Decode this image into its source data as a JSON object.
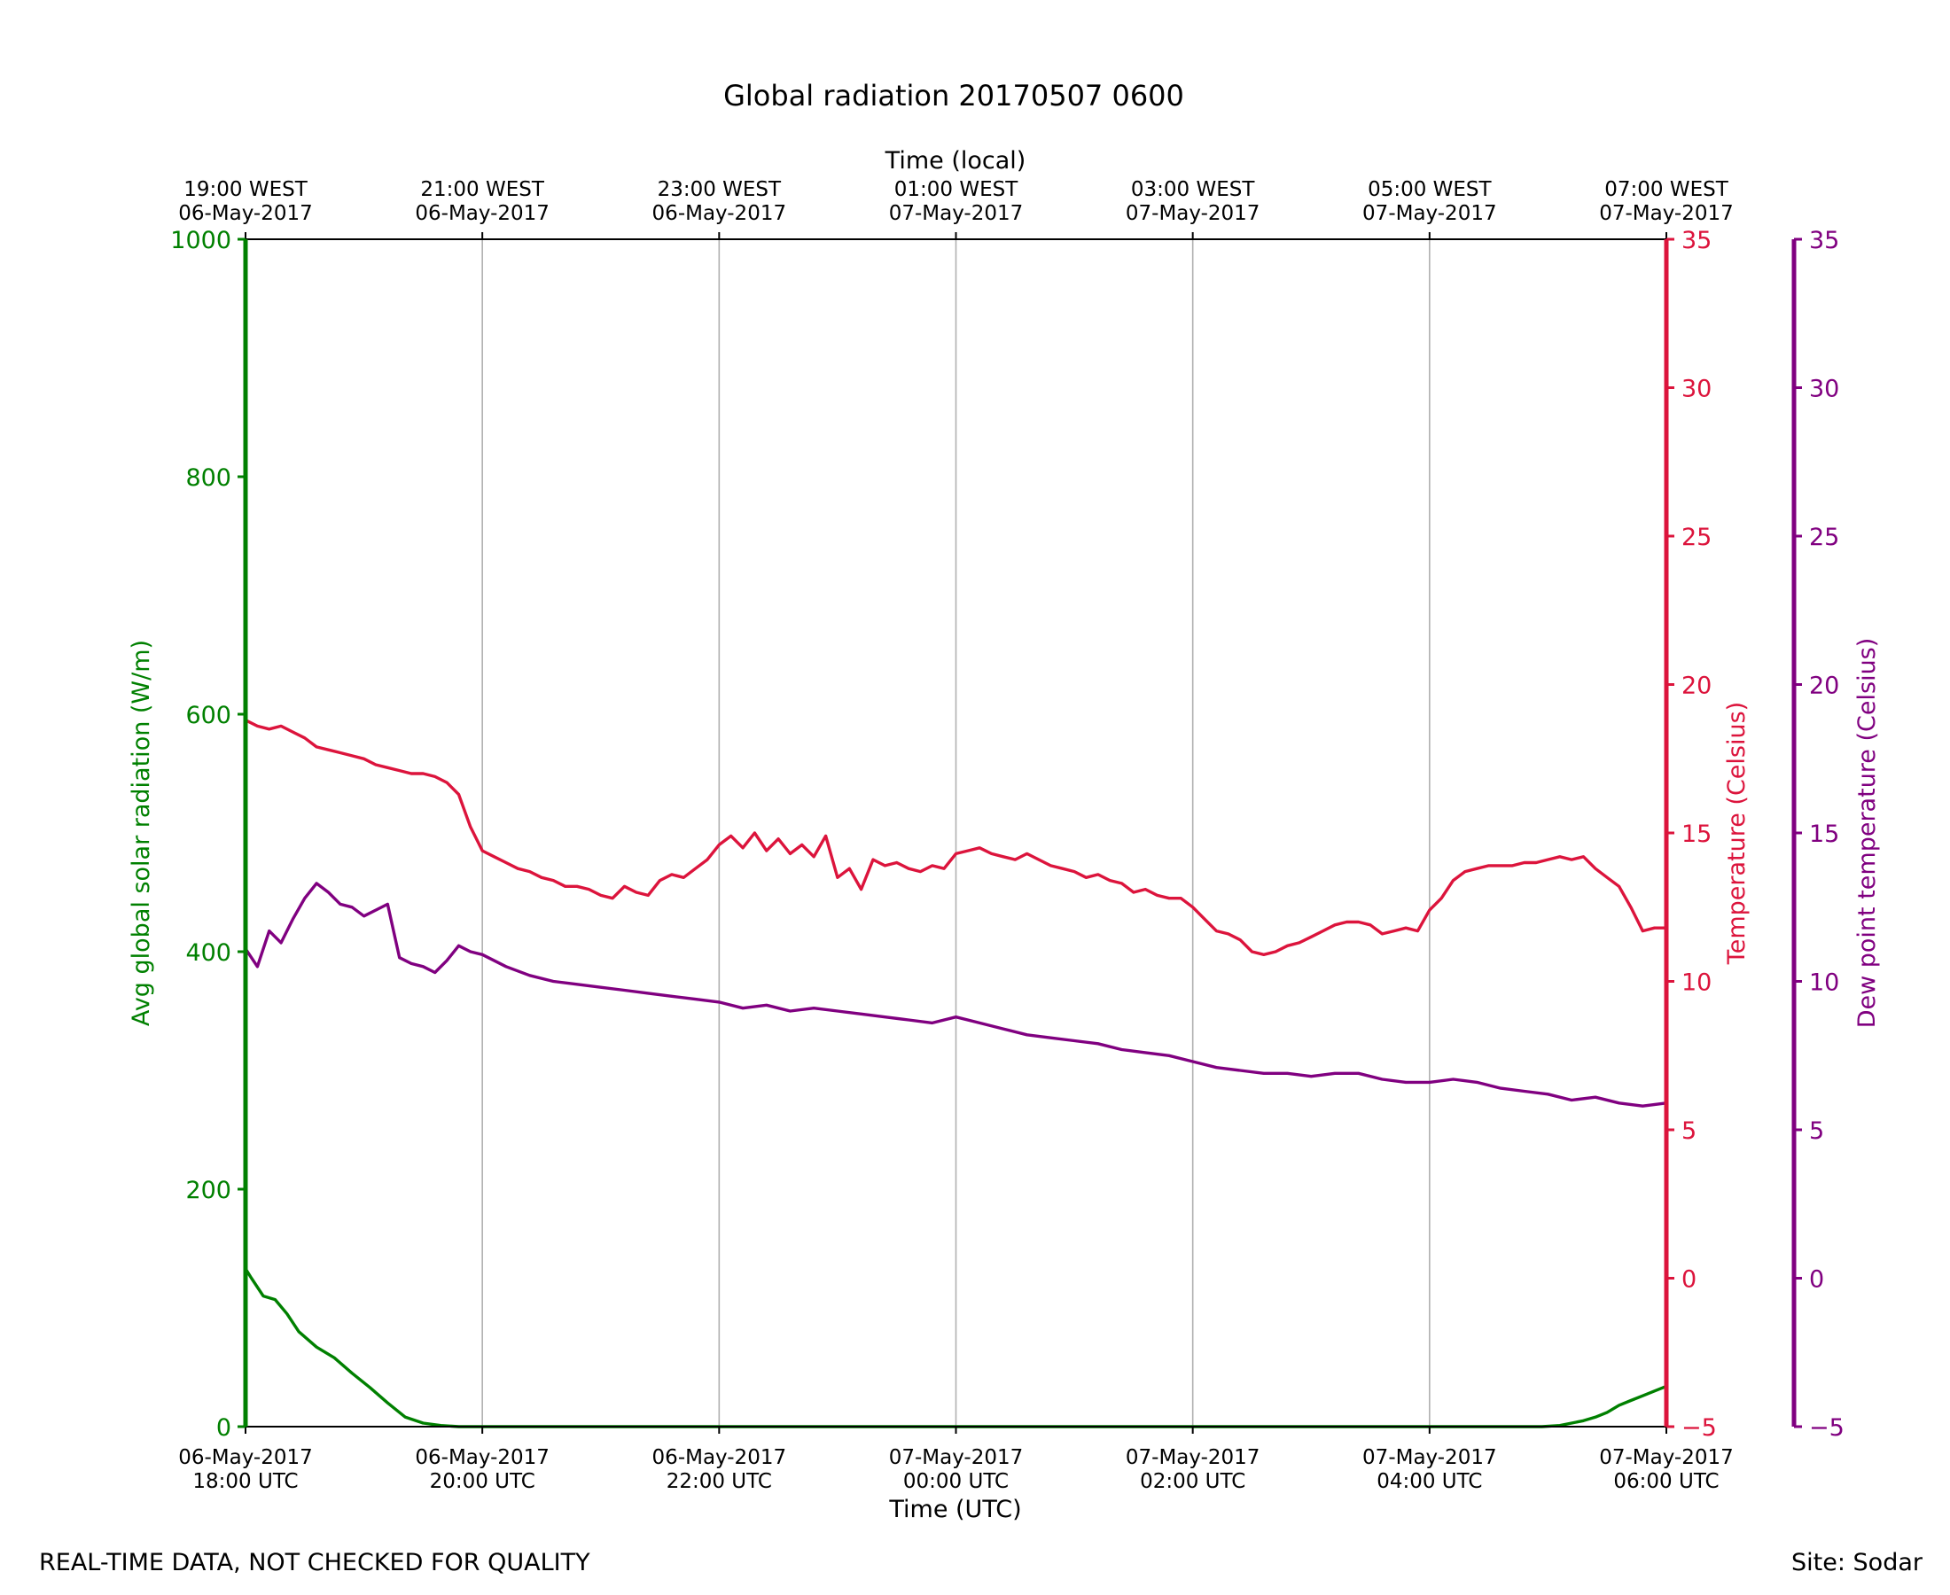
{
  "chart_data": {
    "type": "line",
    "title": "Global radiation 20170507 0600",
    "xlabel": "Time (UTC)",
    "xlabel_top": "Time (local)",
    "x_range_hours_utc": [
      0,
      12
    ],
    "x_ticks_bottom": [
      {
        "hour": 0,
        "line1": "06-May-2017",
        "line2": "18:00 UTC"
      },
      {
        "hour": 2,
        "line1": "06-May-2017",
        "line2": "20:00 UTC"
      },
      {
        "hour": 4,
        "line1": "06-May-2017",
        "line2": "22:00 UTC"
      },
      {
        "hour": 6,
        "line1": "07-May-2017",
        "line2": "00:00 UTC"
      },
      {
        "hour": 8,
        "line1": "07-May-2017",
        "line2": "02:00 UTC"
      },
      {
        "hour": 10,
        "line1": "07-May-2017",
        "line2": "04:00 UTC"
      },
      {
        "hour": 12,
        "line1": "07-May-2017",
        "line2": "06:00 UTC"
      }
    ],
    "x_ticks_top": [
      {
        "hour": 0,
        "line1": "19:00 WEST",
        "line2": "06-May-2017"
      },
      {
        "hour": 2,
        "line1": "21:00 WEST",
        "line2": "06-May-2017"
      },
      {
        "hour": 4,
        "line1": "23:00 WEST",
        "line2": "06-May-2017"
      },
      {
        "hour": 6,
        "line1": "01:00 WEST",
        "line2": "07-May-2017"
      },
      {
        "hour": 8,
        "line1": "03:00 WEST",
        "line2": "07-May-2017"
      },
      {
        "hour": 10,
        "line1": "05:00 WEST",
        "line2": "07-May-2017"
      },
      {
        "hour": 12,
        "line1": "07:00 WEST",
        "line2": "07-May-2017"
      }
    ],
    "grid": "vertical",
    "axes": {
      "radiation": {
        "label": "Avg global solar radiation (W/m)",
        "side": "left",
        "range": [
          0,
          1000
        ],
        "ticks": [
          "0",
          "200",
          "400",
          "600",
          "800",
          "1000"
        ],
        "color": "#008000"
      },
      "temperature": {
        "label": "Temperature (Celsius)",
        "side": "right",
        "range": [
          -5,
          35
        ],
        "ticks": [
          "−5",
          "0",
          "5",
          "10",
          "15",
          "20",
          "25",
          "30",
          "35"
        ],
        "color": "#dc143c"
      },
      "dewpoint": {
        "label": "Dew point temperature (Celsius)",
        "side": "right-outer",
        "range": [
          -5,
          35
        ],
        "ticks": [
          "−5",
          "0",
          "5",
          "10",
          "15",
          "20",
          "25",
          "30",
          "35"
        ],
        "color": "#800080"
      }
    },
    "series": [
      {
        "name": "Avg global solar radiation",
        "axis": "radiation",
        "color": "#008000",
        "x": [
          0,
          0.05,
          0.15,
          0.25,
          0.35,
          0.45,
          0.6,
          0.75,
          0.9,
          1.05,
          1.2,
          1.35,
          1.5,
          1.65,
          1.8,
          2.0,
          2.2,
          10.95,
          11.1,
          11.2,
          11.3,
          11.4,
          11.5,
          11.6,
          11.7,
          11.8,
          11.9,
          12.0
        ],
        "values": [
          133,
          125,
          110,
          107,
          95,
          80,
          67,
          58,
          45,
          33,
          20,
          8,
          3,
          1,
          0,
          0,
          0,
          0,
          1,
          3,
          5,
          8,
          12,
          18,
          22,
          26,
          30,
          34
        ]
      },
      {
        "name": "Temperature",
        "axis": "temperature",
        "color": "#dc143c",
        "x": [
          0,
          0.1,
          0.2,
          0.3,
          0.4,
          0.5,
          0.6,
          0.7,
          0.8,
          0.9,
          1.0,
          1.1,
          1.2,
          1.3,
          1.4,
          1.5,
          1.6,
          1.7,
          1.8,
          1.9,
          2.0,
          2.1,
          2.2,
          2.3,
          2.4,
          2.5,
          2.6,
          2.7,
          2.8,
          2.9,
          3.0,
          3.1,
          3.2,
          3.3,
          3.4,
          3.5,
          3.6,
          3.7,
          3.8,
          3.9,
          4.0,
          4.1,
          4.2,
          4.3,
          4.4,
          4.5,
          4.6,
          4.7,
          4.8,
          4.9,
          5.0,
          5.1,
          5.2,
          5.3,
          5.4,
          5.5,
          5.6,
          5.7,
          5.8,
          5.9,
          6.0,
          6.1,
          6.2,
          6.3,
          6.4,
          6.5,
          6.6,
          6.7,
          6.8,
          6.9,
          7.0,
          7.1,
          7.2,
          7.3,
          7.4,
          7.5,
          7.6,
          7.7,
          7.8,
          7.9,
          8.0,
          8.1,
          8.2,
          8.3,
          8.4,
          8.5,
          8.6,
          8.7,
          8.8,
          8.9,
          9.0,
          9.1,
          9.2,
          9.3,
          9.4,
          9.5,
          9.6,
          9.7,
          9.8,
          9.9,
          10.0,
          10.1,
          10.2,
          10.3,
          10.4,
          10.5,
          10.6,
          10.7,
          10.8,
          10.9,
          11.0,
          11.1,
          11.2,
          11.3,
          11.4,
          11.5,
          11.6,
          11.7,
          11.8,
          11.9,
          12.0
        ],
        "values": [
          18.8,
          18.6,
          18.5,
          18.6,
          18.4,
          18.2,
          17.9,
          17.8,
          17.7,
          17.6,
          17.5,
          17.3,
          17.2,
          17.1,
          17.0,
          17.0,
          16.9,
          16.7,
          16.3,
          15.2,
          14.4,
          14.2,
          14.0,
          13.8,
          13.7,
          13.5,
          13.4,
          13.2,
          13.2,
          13.1,
          12.9,
          12.8,
          13.2,
          13.0,
          12.9,
          13.4,
          13.6,
          13.5,
          13.8,
          14.1,
          14.6,
          14.9,
          14.5,
          15.0,
          14.4,
          14.8,
          14.3,
          14.6,
          14.2,
          14.9,
          13.5,
          13.8,
          13.1,
          14.1,
          13.9,
          14.0,
          13.8,
          13.7,
          13.9,
          13.8,
          14.3,
          14.4,
          14.5,
          14.3,
          14.2,
          14.1,
          14.3,
          14.1,
          13.9,
          13.8,
          13.7,
          13.5,
          13.6,
          13.4,
          13.3,
          13.0,
          13.1,
          12.9,
          12.8,
          12.8,
          12.5,
          12.1,
          11.7,
          11.6,
          11.4,
          11.0,
          10.9,
          11.0,
          11.2,
          11.3,
          11.5,
          11.7,
          11.9,
          12.0,
          12.0,
          11.9,
          11.6,
          11.7,
          11.8,
          11.7,
          12.4,
          12.8,
          13.4,
          13.7,
          13.8,
          13.9,
          13.9,
          13.9,
          14.0,
          14.0,
          14.1,
          14.2,
          14.1,
          14.2,
          13.8,
          13.5,
          13.2,
          12.5,
          11.7,
          11.8,
          11.8
        ]
      },
      {
        "name": "Dew point temperature",
        "axis": "dewpoint",
        "color": "#800080",
        "x": [
          0,
          0.1,
          0.2,
          0.3,
          0.4,
          0.5,
          0.6,
          0.7,
          0.8,
          0.9,
          1.0,
          1.1,
          1.2,
          1.3,
          1.4,
          1.5,
          1.6,
          1.7,
          1.8,
          1.9,
          2.0,
          2.2,
          2.4,
          2.6,
          2.8,
          3.0,
          3.2,
          3.4,
          3.6,
          3.8,
          4.0,
          4.2,
          4.4,
          4.6,
          4.8,
          5.0,
          5.2,
          5.4,
          5.6,
          5.8,
          6.0,
          6.2,
          6.4,
          6.6,
          6.8,
          7.0,
          7.2,
          7.4,
          7.6,
          7.8,
          8.0,
          8.2,
          8.4,
          8.6,
          8.8,
          9.0,
          9.2,
          9.4,
          9.6,
          9.8,
          10.0,
          10.2,
          10.4,
          10.6,
          10.8,
          11.0,
          11.2,
          11.4,
          11.6,
          11.8,
          12.0
        ],
        "values": [
          11.1,
          10.5,
          11.7,
          11.3,
          12.1,
          12.8,
          13.3,
          13.0,
          12.6,
          12.5,
          12.2,
          12.4,
          12.6,
          10.8,
          10.6,
          10.5,
          10.3,
          10.7,
          11.2,
          11.0,
          10.9,
          10.5,
          10.2,
          10.0,
          9.9,
          9.8,
          9.7,
          9.6,
          9.5,
          9.4,
          9.3,
          9.1,
          9.2,
          9.0,
          9.1,
          9.0,
          8.9,
          8.8,
          8.7,
          8.6,
          8.8,
          8.6,
          8.4,
          8.2,
          8.1,
          8.0,
          7.9,
          7.7,
          7.6,
          7.5,
          7.3,
          7.1,
          7.0,
          6.9,
          6.9,
          6.8,
          6.9,
          6.9,
          6.7,
          6.6,
          6.6,
          6.7,
          6.6,
          6.4,
          6.3,
          6.2,
          6.0,
          6.1,
          5.9,
          5.8,
          5.9
        ]
      }
    ]
  },
  "footer": {
    "left": "REAL-TIME DATA, NOT CHECKED FOR QUALITY",
    "right": "Site: Sodar"
  }
}
